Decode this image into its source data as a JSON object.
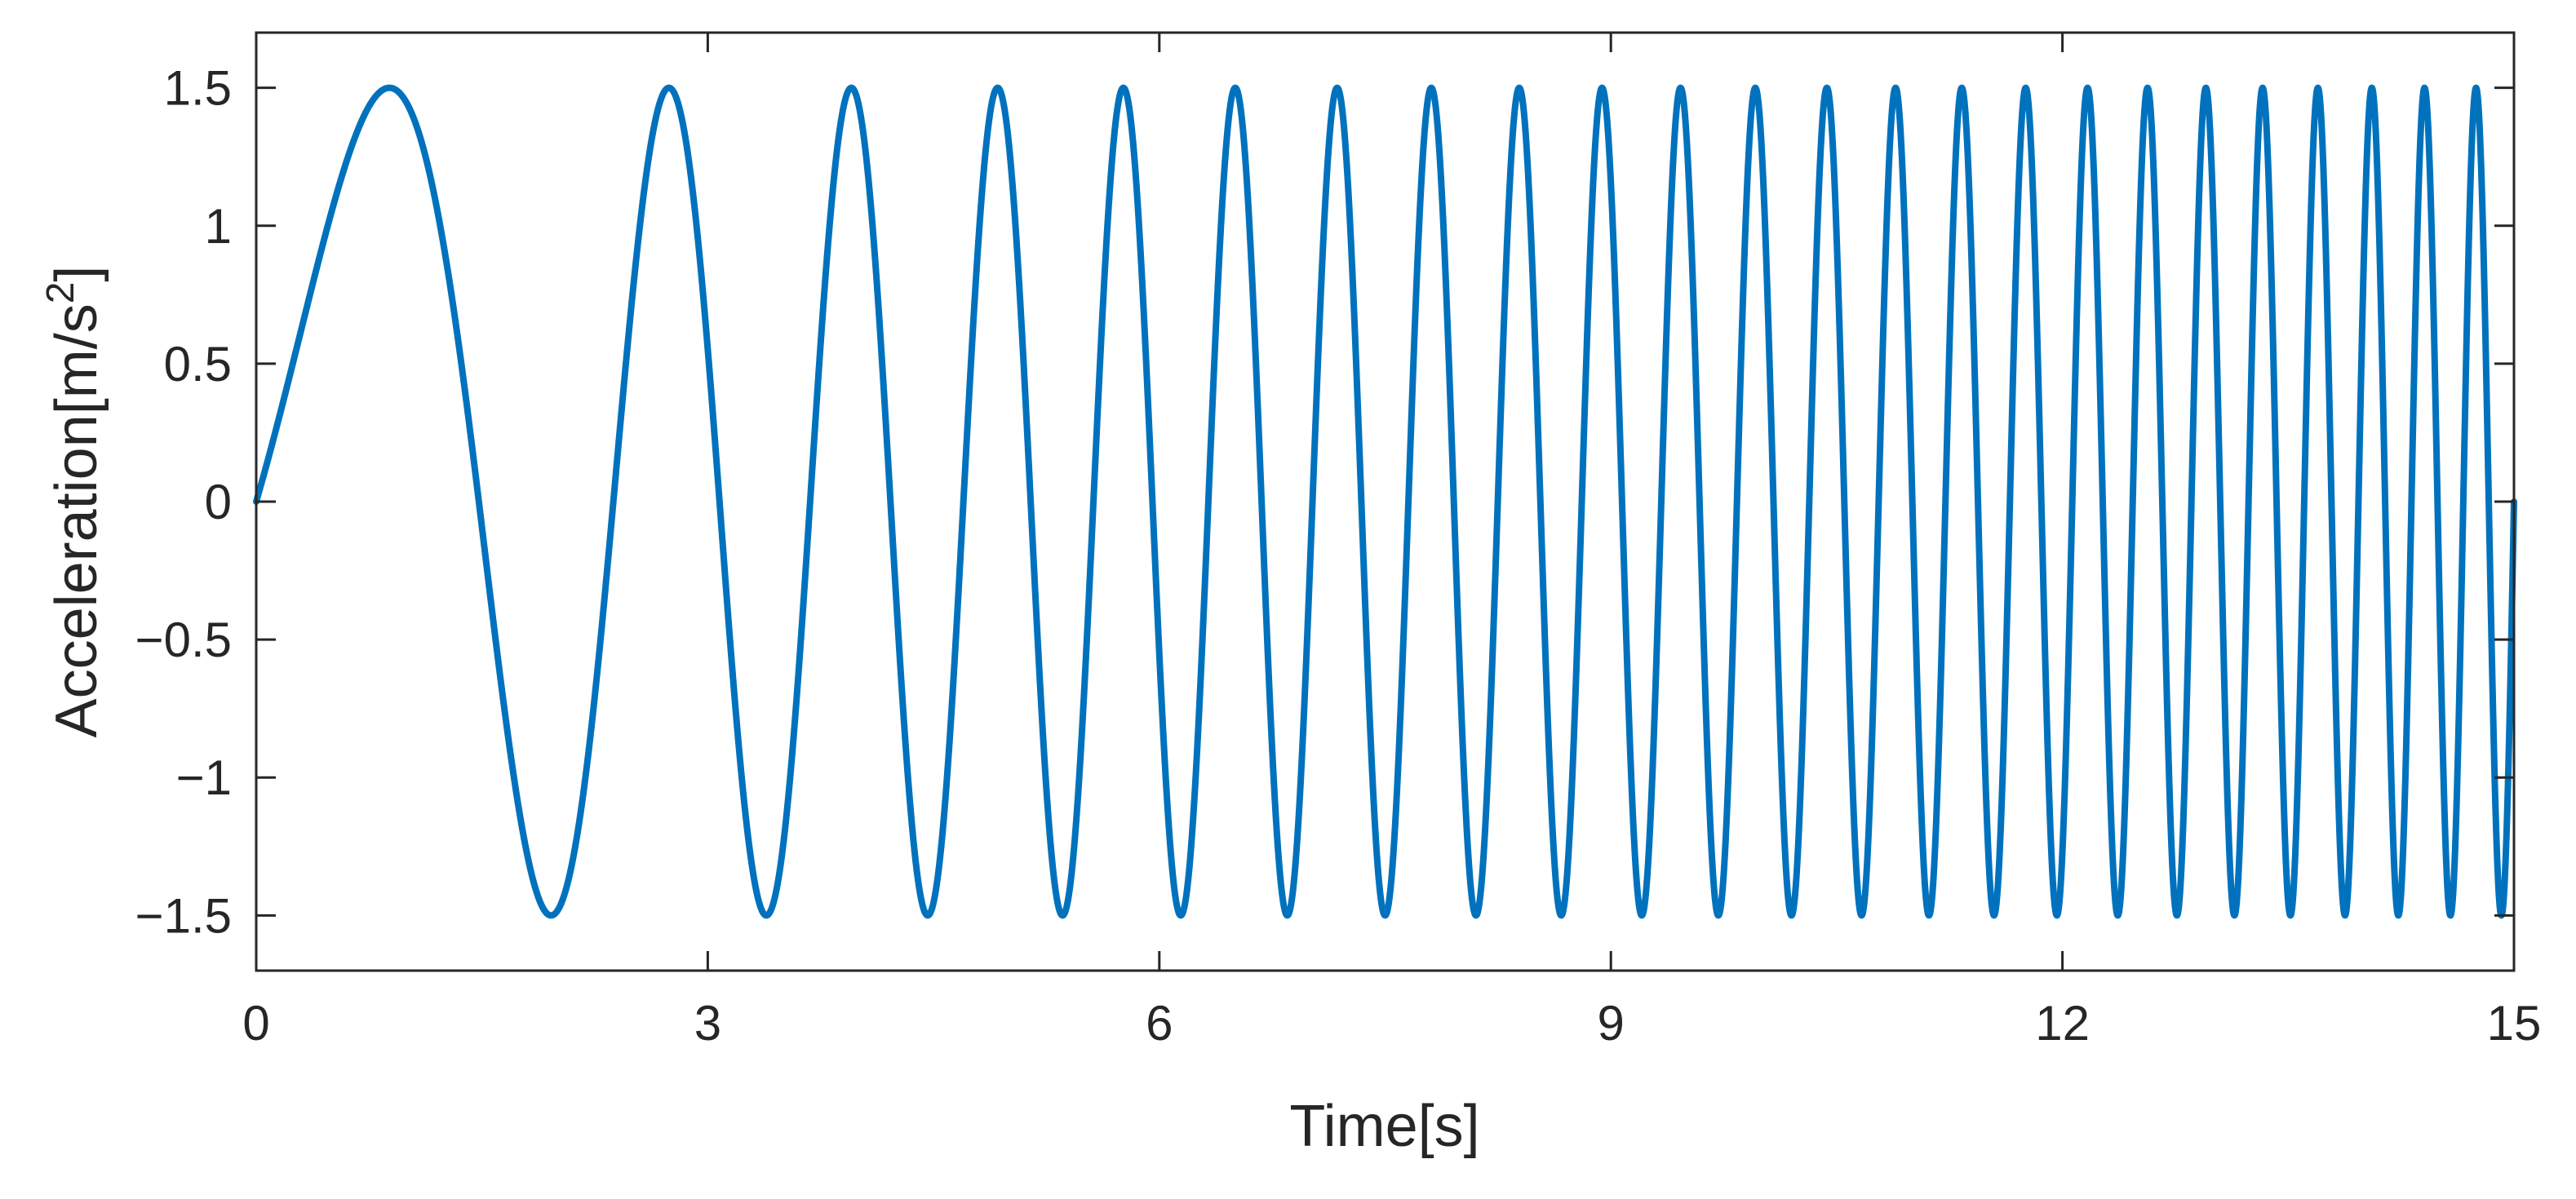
{
  "chart_data": {
    "type": "line",
    "title": "",
    "xlabel": "Time[s]",
    "ylabel": {
      "text": "Acceleration[m/s",
      "superscript": "2",
      "close": "]"
    },
    "xlim": [
      0,
      15
    ],
    "ylim": [
      -1.7,
      1.7
    ],
    "x_ticks": [
      0,
      3,
      6,
      9,
      12,
      15
    ],
    "x_tick_labels": [
      "0",
      "3",
      "6",
      "9",
      "12",
      "15"
    ],
    "y_ticks": [
      1.5,
      1,
      0.5,
      0,
      -0.5,
      -1,
      -1.5
    ],
    "y_tick_labels": [
      "1.5",
      "1",
      "0.5",
      "0",
      "−0.5",
      "−1",
      "−1.5"
    ],
    "grid": false,
    "legend": "none",
    "series": [
      {
        "color": "#0072BD",
        "function": "amplitude * sin(2*pi*(f0*t + (f1 - f0)/(2*T)*t^2))",
        "amplitude": 1.5,
        "f0": 0.2,
        "f1": 3.0,
        "T": 15,
        "t_range": [
          0,
          15
        ]
      }
    ]
  }
}
